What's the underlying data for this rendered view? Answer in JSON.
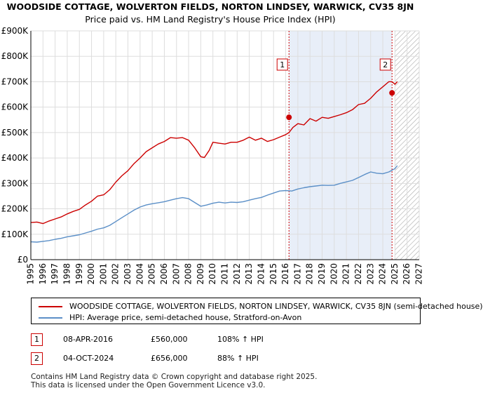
{
  "header": {
    "title": "WOODSIDE COTTAGE, WOLVERTON FIELDS, NORTON LINDSEY, WARWICK, CV35 8JN",
    "subtitle": "Price paid vs. HM Land Registry's House Price Index (HPI)"
  },
  "legend": {
    "property_label": "WOODSIDE COTTAGE, WOLVERTON FIELDS, NORTON LINDSEY, WARWICK, CV35 8JN (semi-detached house)",
    "hpi_label": "HPI: Average price, semi-detached house, Stratford-on-Avon"
  },
  "sales": [
    {
      "num": "1",
      "date": "08-APR-2016",
      "price": "£560,000",
      "hpi_change": "108% ↑ HPI"
    },
    {
      "num": "2",
      "date": "04-OCT-2024",
      "price": "£656,000",
      "hpi_change": "88% ↑ HPI"
    }
  ],
  "footer": {
    "line1": "Contains HM Land Registry data © Crown copyright and database right 2025.",
    "line2": "This data is licensed under the Open Government Licence v3.0."
  },
  "colors": {
    "property": "#cc0000",
    "hpi": "#5b8fc7",
    "shade": "#e8eef8",
    "hatch": "#aaaaaa",
    "grid": "#dddddd"
  },
  "chart_data": {
    "type": "line",
    "title": "Price paid vs. HM Land Registry's House Price Index (HPI)",
    "xlim": [
      1995,
      2027
    ],
    "ylim": [
      0,
      900000
    ],
    "x_ticks": [
      "1995",
      "1996",
      "1997",
      "1998",
      "1999",
      "2000",
      "2001",
      "2002",
      "2003",
      "2004",
      "2005",
      "2006",
      "2007",
      "2008",
      "2009",
      "2010",
      "2011",
      "2012",
      "2013",
      "2014",
      "2015",
      "2016",
      "2017",
      "2018",
      "2019",
      "2020",
      "2021",
      "2022",
      "2023",
      "2024",
      "2025",
      "2026",
      "2027"
    ],
    "y_ticks": [
      {
        "value": 0,
        "label": "£0"
      },
      {
        "value": 100000,
        "label": "£100K"
      },
      {
        "value": 200000,
        "label": "£200K"
      },
      {
        "value": 300000,
        "label": "£300K"
      },
      {
        "value": 400000,
        "label": "£400K"
      },
      {
        "value": 500000,
        "label": "£500K"
      },
      {
        "value": 600000,
        "label": "£600K"
      },
      {
        "value": 700000,
        "label": "£700K"
      },
      {
        "value": 800000,
        "label": "£800K"
      },
      {
        "value": 900000,
        "label": "£900K"
      }
    ],
    "shaded_region": [
      2016.27,
      2024.76
    ],
    "forecast_from": 2025.0,
    "series": [
      {
        "name": "WOODSIDE COTTAGE, WOLVERTON FIELDS, NORTON LINDSEY, WARWICK, CV35 8JN (semi-detached house)",
        "x": [
          1995.0,
          1995.5,
          1996.0,
          1996.5,
          1997.0,
          1997.5,
          1998.0,
          1998.5,
          1999.0,
          1999.5,
          2000.0,
          2000.5,
          2001.0,
          2001.5,
          2002.0,
          2002.5,
          2003.0,
          2003.5,
          2004.0,
          2004.5,
          2005.0,
          2005.5,
          2006.0,
          2006.5,
          2007.0,
          2007.5,
          2008.0,
          2008.5,
          2009.0,
          2009.3,
          2009.7,
          2010.0,
          2010.5,
          2011.0,
          2011.5,
          2012.0,
          2012.5,
          2013.0,
          2013.5,
          2014.0,
          2014.5,
          2015.0,
          2015.5,
          2016.0,
          2016.27,
          2016.6,
          2017.0,
          2017.5,
          2018.0,
          2018.5,
          2019.0,
          2019.5,
          2020.0,
          2020.5,
          2021.0,
          2021.5,
          2022.0,
          2022.5,
          2023.0,
          2023.5,
          2024.0,
          2024.5,
          2024.76,
          2025.0,
          2025.2
        ],
        "y": [
          146000,
          148000,
          142000,
          152000,
          160000,
          168000,
          180000,
          190000,
          198000,
          215000,
          230000,
          250000,
          255000,
          275000,
          305000,
          330000,
          350000,
          378000,
          400000,
          425000,
          440000,
          455000,
          465000,
          480000,
          478000,
          480000,
          470000,
          440000,
          405000,
          402000,
          430000,
          462000,
          458000,
          455000,
          462000,
          462000,
          470000,
          482000,
          470000,
          478000,
          465000,
          472000,
          482000,
          492000,
          500000,
          520000,
          535000,
          530000,
          555000,
          545000,
          560000,
          556000,
          563000,
          570000,
          578000,
          590000,
          610000,
          615000,
          635000,
          660000,
          680000,
          700000,
          700000,
          690000,
          700000
        ]
      },
      {
        "name": "HPI: Average price, semi-detached house, Stratford-on-Avon",
        "x": [
          1995.0,
          1995.5,
          1996.0,
          1996.5,
          1997.0,
          1997.5,
          1998.0,
          1998.5,
          1999.0,
          1999.5,
          2000.0,
          2000.5,
          2001.0,
          2001.5,
          2002.0,
          2002.5,
          2003.0,
          2003.5,
          2004.0,
          2004.5,
          2005.0,
          2005.5,
          2006.0,
          2006.5,
          2007.0,
          2007.5,
          2008.0,
          2008.5,
          2009.0,
          2009.5,
          2010.0,
          2010.5,
          2011.0,
          2011.5,
          2012.0,
          2012.5,
          2013.0,
          2013.5,
          2014.0,
          2014.5,
          2015.0,
          2015.5,
          2016.0,
          2016.5,
          2017.0,
          2017.5,
          2018.0,
          2018.5,
          2019.0,
          2019.5,
          2020.0,
          2020.5,
          2021.0,
          2021.5,
          2022.0,
          2022.5,
          2023.0,
          2023.5,
          2024.0,
          2024.5,
          2025.0,
          2025.2
        ],
        "y": [
          70000,
          69000,
          72000,
          75000,
          80000,
          84000,
          90000,
          94000,
          98000,
          105000,
          112000,
          120000,
          125000,
          135000,
          150000,
          165000,
          180000,
          195000,
          207000,
          215000,
          220000,
          224000,
          228000,
          234000,
          240000,
          244000,
          240000,
          225000,
          210000,
          215000,
          222000,
          226000,
          223000,
          226000,
          225000,
          228000,
          234000,
          240000,
          245000,
          254000,
          262000,
          270000,
          272000,
          270000,
          278000,
          283000,
          287000,
          290000,
          293000,
          292000,
          293000,
          300000,
          306000,
          312000,
          323000,
          335000,
          345000,
          340000,
          338000,
          345000,
          358000,
          370000
        ]
      }
    ],
    "sales_points": [
      {
        "label": "1",
        "x": 2016.27,
        "y": 560000
      },
      {
        "label": "2",
        "x": 2024.76,
        "y": 656000
      }
    ]
  }
}
